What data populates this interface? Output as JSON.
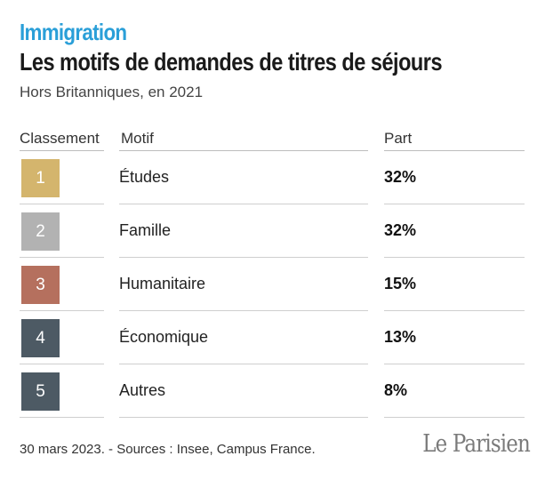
{
  "header": {
    "kicker": "Immigration",
    "title": "Les motifs de demandes de titres de séjours",
    "subtitle": "Hors Britanniques, en 2021"
  },
  "columns": {
    "rank": "Classement",
    "motif": "Motif",
    "part": "Part"
  },
  "chart_data": {
    "type": "table",
    "title": "Les motifs de demandes de titres de séjours",
    "subtitle": "Hors Britanniques, en 2021",
    "columns": [
      "Classement",
      "Motif",
      "Part"
    ],
    "rows": [
      {
        "rank": "1",
        "motif": "Études",
        "part": "32%",
        "value": 32,
        "color": "#d4b56d"
      },
      {
        "rank": "2",
        "motif": "Famille",
        "part": "32%",
        "value": 32,
        "color": "#b2b2b2"
      },
      {
        "rank": "3",
        "motif": "Humanitaire",
        "part": "15%",
        "value": 15,
        "color": "#b5705e"
      },
      {
        "rank": "4",
        "motif": "Économique",
        "part": "13%",
        "value": 13,
        "color": "#4d5a64"
      },
      {
        "rank": "5",
        "motif": "Autres",
        "part": "8%",
        "value": 8,
        "color": "#4d5a64"
      }
    ]
  },
  "footer": {
    "source": "30 mars 2023. - Sources : Insee, Campus France.",
    "logo": "Le Parisien"
  }
}
